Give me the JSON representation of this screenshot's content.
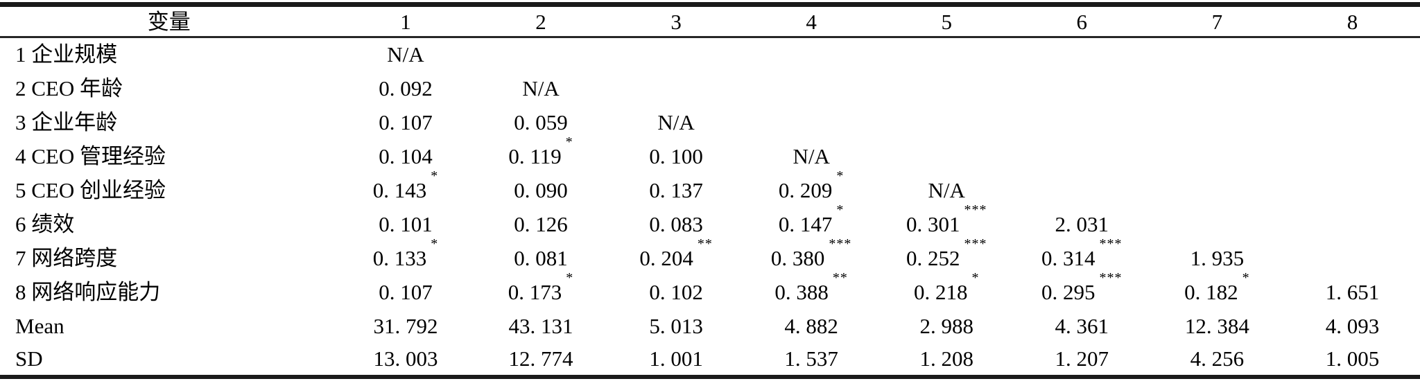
{
  "table": {
    "header": [
      "变量",
      "1",
      "2",
      "3",
      "4",
      "5",
      "6",
      "7",
      "8"
    ],
    "rows": [
      {
        "label": "1 企业规模",
        "cells": [
          {
            "v": "N/A"
          },
          null,
          null,
          null,
          null,
          null,
          null,
          null
        ]
      },
      {
        "label": "2 CEO 年龄",
        "cells": [
          {
            "v": "0. 092"
          },
          {
            "v": "N/A"
          },
          null,
          null,
          null,
          null,
          null,
          null
        ]
      },
      {
        "label": "3 企业年龄",
        "cells": [
          {
            "v": "0. 107"
          },
          {
            "v": "0. 059"
          },
          {
            "v": "N/A"
          },
          null,
          null,
          null,
          null,
          null
        ]
      },
      {
        "label": "4 CEO 管理经验",
        "cells": [
          {
            "v": "0. 104"
          },
          {
            "v": "0. 119",
            "sup": "*"
          },
          {
            "v": "0. 100"
          },
          {
            "v": "N/A"
          },
          null,
          null,
          null,
          null
        ]
      },
      {
        "label": "5 CEO 创业经验",
        "cells": [
          {
            "v": "0. 143",
            "sup": "*"
          },
          {
            "v": "0. 090"
          },
          {
            "v": "0. 137"
          },
          {
            "v": "0. 209",
            "sup": "*"
          },
          {
            "v": "N/A"
          },
          null,
          null,
          null
        ]
      },
      {
        "label": "6 绩效",
        "cells": [
          {
            "v": "0. 101"
          },
          {
            "v": "0. 126"
          },
          {
            "v": "0. 083"
          },
          {
            "v": "0. 147",
            "sup": "*"
          },
          {
            "v": "0. 301",
            "sup": "***"
          },
          {
            "v": "2. 031"
          },
          null,
          null
        ]
      },
      {
        "label": "7 网络跨度",
        "cells": [
          {
            "v": "0. 133",
            "sup": "*"
          },
          {
            "v": "0. 081"
          },
          {
            "v": "0. 204",
            "sup": "**"
          },
          {
            "v": "0. 380",
            "sup": "***"
          },
          {
            "v": "0. 252",
            "sup": "***"
          },
          {
            "v": "0. 314",
            "sup": "***"
          },
          {
            "v": "1. 935"
          },
          null
        ]
      },
      {
        "label": "8 网络响应能力",
        "cells": [
          {
            "v": "0. 107"
          },
          {
            "v": "0. 173",
            "sup": "*"
          },
          {
            "v": "0. 102"
          },
          {
            "v": "0. 388",
            "sup": "**"
          },
          {
            "v": "0. 218",
            "sup": "*"
          },
          {
            "v": "0. 295",
            "sup": "***"
          },
          {
            "v": "0. 182",
            "sup": "*"
          },
          {
            "v": "1. 651"
          }
        ]
      },
      {
        "label": "Mean",
        "cells": [
          {
            "v": "31. 792"
          },
          {
            "v": "43. 131"
          },
          {
            "v": "5. 013"
          },
          {
            "v": "4. 882"
          },
          {
            "v": "2. 988"
          },
          {
            "v": "4. 361"
          },
          {
            "v": "12. 384"
          },
          {
            "v": "4. 093"
          }
        ]
      },
      {
        "label": "SD",
        "cells": [
          {
            "v": "13. 003"
          },
          {
            "v": "12. 774"
          },
          {
            "v": "1. 001"
          },
          {
            "v": "1. 537"
          },
          {
            "v": "1. 208"
          },
          {
            "v": "1. 207"
          },
          {
            "v": "4. 256"
          },
          {
            "v": "1. 005"
          }
        ]
      }
    ],
    "layout": {
      "label_col_width_pct": 23.8,
      "num_col_width_pct": 9.525
    },
    "colors": {
      "text": "#000000",
      "rule": "#1a1a1a",
      "background": "#ffffff"
    }
  }
}
